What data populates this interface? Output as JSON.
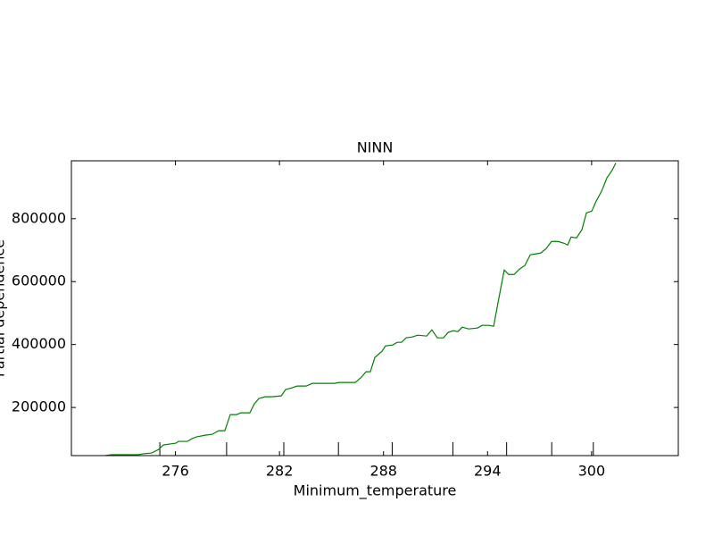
{
  "chart_data": {
    "type": "line",
    "title": "NINN",
    "x_label": "Minimum_temperature",
    "y_label": "Partial dependence",
    "color": "#008000",
    "x": [
      271.96,
      272.32,
      273.86,
      274.12,
      274.63,
      275.04,
      275.3,
      275.66,
      276.02,
      276.18,
      276.69,
      276.95,
      277.21,
      277.72,
      278.13,
      278.49,
      278.85,
      279.16,
      279.52,
      279.78,
      280.29,
      280.55,
      280.81,
      281.17,
      281.58,
      282.1,
      282.35,
      282.71,
      283.02,
      283.54,
      283.9,
      285.18,
      285.44,
      285.96,
      286.37,
      286.73,
      286.99,
      287.24,
      287.5,
      287.91,
      288.12,
      288.53,
      288.79,
      289.04,
      289.3,
      289.66,
      289.97,
      290.49,
      290.79,
      291.1,
      291.46,
      291.72,
      292.03,
      292.29,
      292.54,
      292.9,
      293.42,
      293.68,
      294.09,
      294.35,
      294.6,
      294.96,
      295.22,
      295.53,
      295.84,
      296.15,
      296.46,
      296.76,
      297.07,
      297.38,
      297.69,
      298.05,
      298.41,
      298.62,
      298.82,
      299.13,
      299.44,
      299.7,
      300.01,
      300.26,
      300.57,
      300.88,
      301.19,
      301.4
    ],
    "values": [
      47000,
      50000,
      50000,
      52500,
      55300,
      66700,
      80800,
      83700,
      86500,
      92200,
      92200,
      100700,
      106400,
      112000,
      114900,
      126200,
      126200,
      177300,
      177300,
      183000,
      183000,
      211300,
      228400,
      234000,
      234000,
      236900,
      256700,
      262400,
      268100,
      268100,
      276600,
      276600,
      279400,
      279400,
      279400,
      296500,
      313500,
      313500,
      358900,
      378700,
      395800,
      398600,
      407100,
      407100,
      421300,
      424100,
      429800,
      427000,
      446800,
      421300,
      421300,
      438300,
      444000,
      441100,
      455300,
      449700,
      452500,
      461000,
      461000,
      458200,
      531900,
      636900,
      622700,
      622700,
      639700,
      651100,
      685100,
      688000,
      690800,
      705000,
      727700,
      727700,
      722000,
      716300,
      741900,
      739000,
      764600,
      818500,
      824100,
      855400,
      886600,
      929100,
      954600,
      977300
    ],
    "deciles": [
      275.1,
      278.95,
      282.25,
      285.4,
      288.5,
      292.0,
      295.1,
      297.7,
      300.1
    ],
    "xlim": [
      270,
      305
    ],
    "xticks": [
      276,
      282,
      288,
      294,
      300
    ],
    "ylim": [
      47000,
      984000
    ],
    "yticks": [
      200000,
      400000,
      600000,
      800000
    ]
  }
}
